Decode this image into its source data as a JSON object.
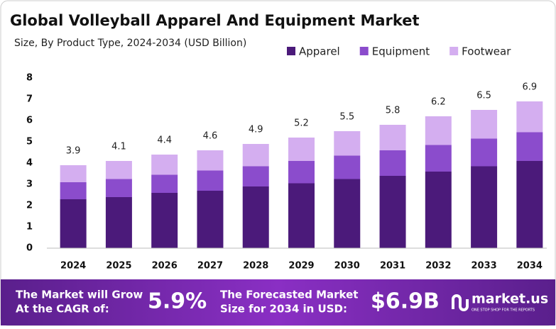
{
  "chart_data": {
    "type": "stacked_bar",
    "title": "Global Volleyball Apparel And Equipment Market",
    "subtitle": "Size, By Product Type, 2024-2034 (USD Billion)",
    "categories": [
      "2024",
      "2025",
      "2026",
      "2027",
      "2028",
      "2029",
      "2030",
      "2031",
      "2032",
      "2033",
      "2034"
    ],
    "series": [
      {
        "name": "Apparel",
        "color": "#4b1a7a",
        "values": [
          2.3,
          2.4,
          2.6,
          2.7,
          2.9,
          3.05,
          3.25,
          3.4,
          3.6,
          3.85,
          4.1
        ]
      },
      {
        "name": "Equipment",
        "color": "#8b4ccc",
        "values": [
          0.8,
          0.85,
          0.85,
          0.95,
          0.95,
          1.05,
          1.1,
          1.2,
          1.25,
          1.3,
          1.35
        ]
      },
      {
        "name": "Footwear",
        "color": "#d4aef0",
        "values": [
          0.8,
          0.85,
          0.95,
          0.95,
          1.05,
          1.1,
          1.15,
          1.2,
          1.35,
          1.35,
          1.45
        ]
      }
    ],
    "totals": [
      3.9,
      4.1,
      4.4,
      4.6,
      4.9,
      5.2,
      5.5,
      5.8,
      6.2,
      6.5,
      6.9
    ],
    "ylim": [
      0,
      8
    ],
    "yticks": [
      0,
      1,
      2,
      3,
      4,
      5,
      6,
      7,
      8
    ],
    "grid": false,
    "legend": "top-right"
  },
  "footer": {
    "cagr_line1": "The Market will Grow",
    "cagr_line2": "At the CAGR of:",
    "cagr": "5.9%",
    "forecast_line1": "The Forecasted Market",
    "forecast_line2": "Size for 2034 in USD:",
    "forecast": "$6.9B",
    "brand": "market.us",
    "tagline": "ONE STOP SHOP FOR THE REPORTS"
  }
}
